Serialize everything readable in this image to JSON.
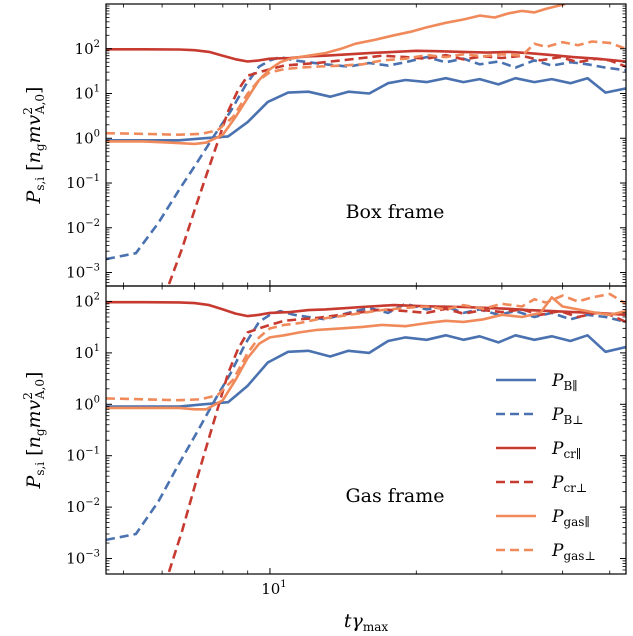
{
  "chart_data": [
    {
      "type": "line",
      "panel": "top",
      "annotation": "Box frame",
      "ylabel": "P_{s,i} [n_g m v_{A,0}^2]",
      "xlabel": "",
      "xscale": "log",
      "yscale": "log",
      "xlim": [
        4.6,
        54
      ],
      "ylim": [
        0.0005,
        1000
      ],
      "yticks": [
        "10^{-3}",
        "10^{-2}",
        "10^{-1}",
        "10^{0}",
        "10^{1}",
        "10^{2}"
      ],
      "series": [
        {
          "key": "Pb_par",
          "color": "#4a72b0",
          "dash": false,
          "x": [
            4.6,
            5.5,
            6.5,
            7.3,
            8.2,
            9.0,
            9.9,
            10.9,
            12.0,
            13.3,
            14.5,
            16.0,
            17.5,
            19.0,
            21.0,
            23.0,
            25.0,
            27.0,
            29.5,
            32.0,
            35.0,
            38.0,
            41.5,
            45.0,
            49.0,
            54.0
          ],
          "y": [
            0.9,
            0.9,
            0.9,
            1.0,
            1.1,
            2.3,
            6.5,
            10.5,
            11.0,
            8.5,
            11.0,
            10.0,
            17.0,
            20.0,
            18.0,
            22.0,
            18.0,
            21.0,
            16.0,
            22.0,
            18.0,
            21.0,
            17.0,
            22.0,
            10.5,
            13.0
          ]
        },
        {
          "key": "Pb_perp",
          "color": "#4a72b0",
          "dash": true,
          "x": [
            4.6,
            5.3,
            5.9,
            6.5,
            7.1,
            7.7,
            8.3,
            8.9,
            9.5,
            10.0,
            10.5,
            11.2,
            12.0,
            13.0,
            14.5,
            16.0,
            17.5,
            19.0,
            21.0,
            23.0,
            25.0,
            27.0,
            29.5,
            32.0,
            35.0,
            38.0,
            41.5,
            45.0,
            49.0,
            54.0
          ],
          "y": [
            0.002,
            0.0027,
            0.013,
            0.07,
            0.3,
            1.2,
            4.0,
            15.0,
            40.0,
            55.0,
            65.0,
            55.0,
            50.0,
            45.0,
            40.0,
            48.0,
            42.0,
            50.0,
            65.0,
            50.0,
            60.0,
            45.0,
            52.0,
            38.0,
            55.0,
            42.0,
            50.0,
            45.0,
            38.0,
            33.0
          ]
        },
        {
          "key": "Pcr_par",
          "color": "#c73a30",
          "dash": false,
          "x": [
            4.6,
            5.5,
            6.5,
            7.0,
            7.5,
            8.0,
            8.5,
            9.0,
            9.5,
            10.0,
            11.0,
            12.0,
            13.0,
            14.5,
            16.0,
            18.0,
            20.0,
            22.0,
            25.0,
            28.0,
            31.0,
            34.0,
            38.0,
            42.0,
            47.0,
            54.0
          ],
          "y": [
            97.0,
            97.0,
            96.0,
            93.0,
            85.0,
            70.0,
            58.0,
            52.0,
            55.0,
            60.0,
            62.0,
            68.0,
            70.0,
            75.0,
            80.0,
            85.0,
            90.0,
            88.0,
            85.0,
            82.0,
            85.0,
            80.0,
            72.0,
            65.0,
            60.0,
            52.0
          ]
        },
        {
          "key": "Pcr_perp",
          "color": "#c73a30",
          "dash": true,
          "x": [
            6.2,
            6.6,
            7.0,
            7.4,
            7.8,
            8.2,
            8.6,
            9.0,
            9.5,
            10.0,
            10.7,
            11.5,
            12.5,
            14.0,
            15.5,
            17.0,
            19.0,
            21.0,
            23.0,
            25.0,
            27.5,
            30.0,
            33.0,
            36.0,
            39.5,
            43.0,
            47.0,
            50.0,
            54.0
          ],
          "y": [
            0.00055,
            0.0035,
            0.025,
            0.15,
            0.8,
            4.0,
            12.0,
            25.0,
            30.0,
            35.0,
            42.0,
            45.0,
            48.0,
            55.0,
            62.0,
            70.0,
            65.0,
            60.0,
            72.0,
            58.0,
            68.0,
            62.0,
            70.0,
            55.0,
            65.0,
            50.0,
            60.0,
            55.0,
            40.0
          ]
        },
        {
          "key": "Pgas_par",
          "color": "#f08a5b",
          "dash": false,
          "x": [
            4.6,
            5.5,
            6.2,
            7.0,
            7.4,
            8.0,
            8.5,
            9.0,
            9.5,
            10.0,
            10.5,
            11.0,
            12.0,
            13.0,
            14.0,
            15.0,
            16.5,
            18.0,
            19.5,
            21.0,
            23.0,
            25.0,
            27.0,
            29.0,
            31.0,
            33.0,
            35.0,
            37.0,
            39.0,
            40.5
          ],
          "y": [
            0.85,
            0.85,
            0.8,
            0.75,
            0.8,
            1.2,
            3.0,
            8.0,
            20.0,
            35.0,
            50.0,
            60.0,
            70.0,
            80.0,
            100.0,
            130.0,
            160.0,
            200.0,
            240.0,
            300.0,
            380.0,
            450.0,
            550.0,
            500.0,
            620.0,
            700.0,
            650.0,
            780.0,
            900.0,
            1000.0
          ]
        },
        {
          "key": "Pgas_perp",
          "color": "#f08a5b",
          "dash": true,
          "x": [
            4.6,
            5.5,
            6.5,
            7.2,
            7.8,
            8.4,
            9.0,
            9.5,
            10.0,
            10.7,
            11.5,
            12.5,
            14.0,
            15.5,
            17.0,
            19.0,
            21.0,
            23.0,
            25.0,
            27.5,
            30.0,
            33.0,
            35.0,
            37.0,
            40.0,
            43.0,
            46.0,
            50.0,
            54.0
          ],
          "y": [
            1.3,
            1.25,
            1.2,
            1.25,
            1.5,
            3.0,
            10.0,
            20.0,
            30.0,
            35.0,
            38.0,
            40.0,
            42.0,
            45.0,
            55.0,
            60.0,
            72.0,
            65.0,
            75.0,
            68.0,
            75.0,
            70.0,
            130.0,
            110.0,
            140.0,
            120.0,
            145.0,
            135.0,
            100.0
          ]
        }
      ]
    },
    {
      "type": "line",
      "panel": "bottom",
      "annotation": "Gas frame",
      "ylabel": "P_{s,i} [n_g m v_{A,0}^2]",
      "xlabel": "t γ_max",
      "xscale": "log",
      "yscale": "log",
      "xlim": [
        4.6,
        54
      ],
      "ylim": [
        0.0005,
        200
      ],
      "xticks": [
        "10^{1}"
      ],
      "yticks": [
        "10^{-3}",
        "10^{-2}",
        "10^{-1}",
        "10^{0}",
        "10^{1}",
        "10^{2}"
      ],
      "legend": {
        "placement": "bottom-right",
        "entries": [
          {
            "key": "Pb_par",
            "main": "P",
            "sub": "B∥"
          },
          {
            "key": "Pb_perp",
            "main": "P",
            "sub": "B⊥"
          },
          {
            "key": "Pcr_par",
            "main": "P",
            "sub": "cr∥"
          },
          {
            "key": "Pcr_perp",
            "main": "P",
            "sub": "cr⊥"
          },
          {
            "key": "Pgas_par",
            "main": "P",
            "sub": "gas∥"
          },
          {
            "key": "Pgas_perp",
            "main": "P",
            "sub": "gas⊥"
          }
        ]
      },
      "series": [
        {
          "key": "Pb_par",
          "color": "#4a72b0",
          "dash": false,
          "x": [
            4.6,
            5.5,
            6.5,
            7.3,
            8.2,
            9.0,
            9.9,
            10.9,
            12.0,
            13.3,
            14.5,
            16.0,
            17.5,
            19.0,
            21.0,
            23.0,
            25.0,
            27.0,
            29.5,
            32.0,
            35.0,
            38.0,
            41.5,
            45.0,
            49.0,
            54.0
          ],
          "y": [
            0.9,
            0.9,
            0.9,
            1.0,
            1.1,
            2.3,
            6.5,
            10.5,
            11.0,
            8.5,
            11.0,
            10.0,
            17.0,
            20.0,
            18.0,
            22.0,
            18.0,
            21.0,
            16.0,
            22.0,
            18.0,
            21.0,
            17.0,
            22.0,
            10.5,
            13.0
          ]
        },
        {
          "key": "Pb_perp",
          "color": "#4a72b0",
          "dash": true,
          "x": [
            4.6,
            5.3,
            5.9,
            6.5,
            7.1,
            7.7,
            8.3,
            8.9,
            9.5,
            10.0,
            10.5,
            11.2,
            12.0,
            13.0,
            14.5,
            16.0,
            17.5,
            19.0,
            21.0,
            23.0,
            25.0,
            27.0,
            29.5,
            32.0,
            35.0,
            38.0,
            41.5,
            45.0,
            49.0,
            54.0
          ],
          "y": [
            0.0023,
            0.003,
            0.013,
            0.07,
            0.3,
            1.2,
            4.0,
            15.0,
            40.0,
            55.0,
            65.0,
            55.0,
            50.0,
            45.0,
            60.0,
            75.0,
            60.0,
            90.0,
            70.0,
            80.0,
            60.0,
            70.0,
            55.0,
            65.0,
            50.0,
            60.0,
            45.0,
            55.0,
            50.0,
            40.0
          ]
        },
        {
          "key": "Pcr_par",
          "color": "#c73a30",
          "dash": false,
          "x": [
            4.6,
            5.5,
            6.5,
            7.0,
            7.5,
            8.0,
            8.5,
            9.0,
            9.5,
            10.0,
            11.0,
            12.0,
            13.0,
            14.5,
            16.0,
            18.0,
            20.0,
            22.0,
            25.0,
            28.0,
            31.0,
            34.0,
            38.0,
            42.0,
            47.0,
            54.0
          ],
          "y": [
            97.0,
            97.0,
            96.0,
            93.0,
            85.0,
            70.0,
            58.0,
            52.0,
            55.0,
            60.0,
            62.0,
            68.0,
            70.0,
            75.0,
            80.0,
            85.0,
            82.0,
            80.0,
            78.0,
            75.0,
            72.0,
            68.0,
            65.0,
            62.0,
            60.0,
            55.0
          ]
        },
        {
          "key": "Pcr_perp",
          "color": "#c73a30",
          "dash": true,
          "x": [
            6.2,
            6.6,
            7.0,
            7.4,
            7.8,
            8.2,
            8.6,
            9.0,
            9.5,
            10.0,
            10.7,
            11.5,
            12.5,
            14.0,
            15.5,
            17.0,
            19.0,
            21.0,
            23.0,
            25.0,
            27.5,
            30.0,
            33.0,
            36.0,
            39.5,
            43.0,
            47.0,
            50.0,
            54.0
          ],
          "y": [
            0.00055,
            0.0035,
            0.025,
            0.15,
            0.8,
            4.0,
            12.0,
            25.0,
            30.0,
            35.0,
            42.0,
            45.0,
            48.0,
            55.0,
            62.0,
            70.0,
            65.0,
            60.0,
            72.0,
            58.0,
            68.0,
            62.0,
            70.0,
            55.0,
            65.0,
            50.0,
            60.0,
            55.0,
            40.0
          ]
        },
        {
          "key": "Pgas_par",
          "color": "#f08a5b",
          "dash": false,
          "x": [
            4.6,
            5.5,
            6.5,
            7.0,
            7.4,
            8.0,
            8.5,
            9.0,
            9.5,
            10.0,
            10.7,
            11.5,
            12.5,
            14.0,
            15.5,
            17.0,
            19.0,
            21.0,
            23.0,
            25.0,
            27.5,
            30.0,
            33.0,
            36.0,
            38.0,
            40.0,
            43.0,
            47.0,
            50.0,
            54.0
          ],
          "y": [
            0.85,
            0.85,
            0.85,
            0.8,
            0.8,
            1.2,
            3.0,
            8.0,
            15.0,
            20.0,
            22.0,
            25.0,
            28.0,
            30.0,
            32.0,
            35.0,
            33.0,
            38.0,
            42.0,
            40.0,
            45.0,
            55.0,
            50.0,
            60.0,
            120.0,
            80.0,
            70.0,
            60.0,
            55.0,
            65.0
          ]
        },
        {
          "key": "Pgas_perp",
          "color": "#f08a5b",
          "dash": true,
          "x": [
            4.6,
            5.5,
            6.5,
            7.2,
            7.8,
            8.4,
            9.0,
            9.5,
            10.0,
            10.7,
            11.5,
            12.5,
            14.0,
            15.5,
            17.0,
            19.0,
            21.0,
            23.0,
            25.0,
            27.5,
            30.0,
            33.0,
            35.0,
            37.0,
            40.0,
            43.0,
            46.0,
            50.0,
            54.0
          ],
          "y": [
            1.3,
            1.25,
            1.2,
            1.25,
            1.5,
            3.0,
            10.0,
            20.0,
            30.0,
            35.0,
            38.0,
            45.0,
            52.0,
            60.0,
            68.0,
            75.0,
            80.0,
            70.0,
            85.0,
            72.0,
            90.0,
            80.0,
            110.0,
            95.0,
            130.0,
            100.0,
            120.0,
            140.0,
            90.0
          ]
        }
      ]
    }
  ]
}
